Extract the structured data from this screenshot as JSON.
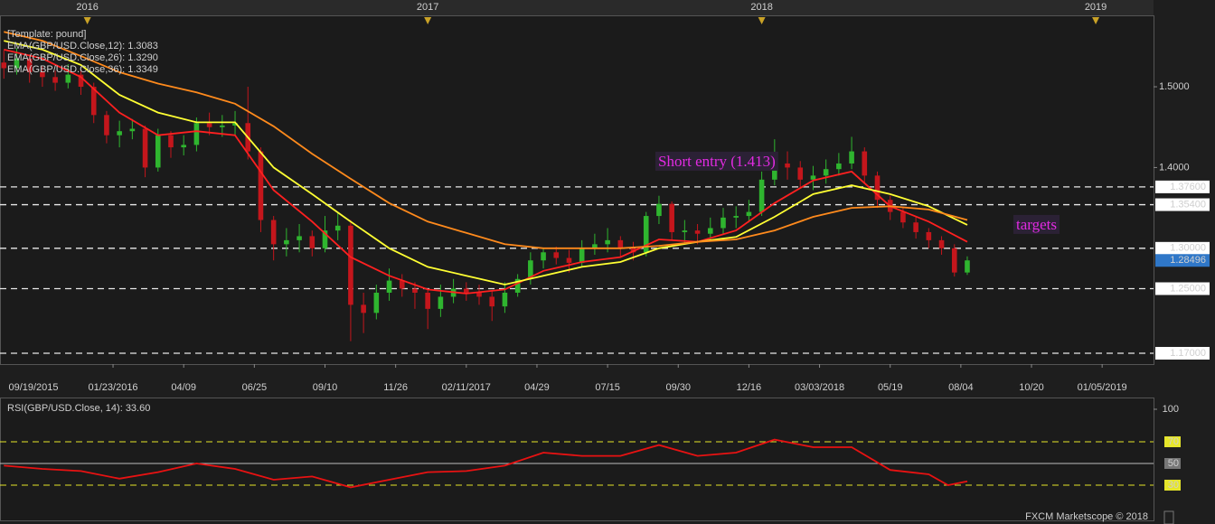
{
  "chart_data": [
    {
      "type": "candlestick",
      "template": "[Template: pound]",
      "x": [
        1,
        3,
        5,
        7,
        9,
        11,
        13,
        15,
        17,
        19,
        21,
        23,
        25,
        27,
        29,
        31,
        33,
        35,
        37,
        39,
        41,
        43,
        45,
        47,
        49,
        51,
        53,
        55,
        57,
        59,
        61,
        63,
        65,
        67,
        69,
        71,
        73,
        75,
        77,
        79,
        81,
        83,
        85,
        87,
        89,
        91,
        93,
        95,
        97,
        99,
        101,
        103,
        105,
        107,
        109,
        111,
        113,
        115,
        117,
        119,
        121,
        123,
        125,
        127,
        129,
        131,
        133,
        135,
        137,
        139,
        141,
        143,
        145,
        147,
        149,
        151
      ],
      "open": [
        1.53,
        1.523,
        1.535,
        1.518,
        1.512,
        1.505,
        1.515,
        1.5,
        1.465,
        1.44,
        1.445,
        1.448,
        1.4,
        1.44,
        1.425,
        1.428,
        1.455,
        1.45,
        1.452,
        1.455,
        1.42,
        1.335,
        1.305,
        1.31,
        1.315,
        1.3,
        1.322,
        1.328,
        1.23,
        1.22,
        1.245,
        1.26,
        1.25,
        1.245,
        1.225,
        1.24,
        1.25,
        1.245,
        1.24,
        1.228,
        1.245,
        1.262,
        1.285,
        1.295,
        1.288,
        1.282,
        1.3,
        1.305,
        1.31,
        1.3,
        1.295,
        1.34,
        1.355,
        1.32,
        1.322,
        1.318,
        1.325,
        1.338,
        1.34,
        1.345,
        1.385,
        1.405,
        1.4,
        1.385,
        1.39,
        1.398,
        1.405,
        1.42,
        1.39,
        1.36,
        1.345,
        1.332,
        1.32,
        1.31,
        1.3,
        1.27
      ],
      "high": [
        1.545,
        1.548,
        1.54,
        1.525,
        1.52,
        1.528,
        1.522,
        1.505,
        1.47,
        1.458,
        1.46,
        1.452,
        1.448,
        1.445,
        1.44,
        1.462,
        1.468,
        1.465,
        1.47,
        1.5,
        1.425,
        1.34,
        1.325,
        1.33,
        1.322,
        1.34,
        1.345,
        1.335,
        1.245,
        1.255,
        1.275,
        1.268,
        1.258,
        1.25,
        1.255,
        1.262,
        1.258,
        1.255,
        1.248,
        1.258,
        1.268,
        1.295,
        1.3,
        1.302,
        1.298,
        1.31,
        1.318,
        1.325,
        1.315,
        1.308,
        1.345,
        1.365,
        1.358,
        1.335,
        1.33,
        1.338,
        1.35,
        1.352,
        1.36,
        1.395,
        1.435,
        1.42,
        1.408,
        1.402,
        1.41,
        1.418,
        1.438,
        1.425,
        1.395,
        1.365,
        1.35,
        1.34,
        1.325,
        1.315,
        1.305,
        1.29
      ],
      "low": [
        1.51,
        1.515,
        1.505,
        1.5,
        1.495,
        1.498,
        1.49,
        1.455,
        1.43,
        1.425,
        1.435,
        1.388,
        1.395,
        1.412,
        1.415,
        1.42,
        1.44,
        1.438,
        1.44,
        1.41,
        1.32,
        1.285,
        1.29,
        1.295,
        1.29,
        1.295,
        1.31,
        1.185,
        1.195,
        1.212,
        1.235,
        1.24,
        1.225,
        1.2,
        1.215,
        1.232,
        1.235,
        1.23,
        1.21,
        1.22,
        1.24,
        1.255,
        1.275,
        1.28,
        1.27,
        1.278,
        1.292,
        1.295,
        1.29,
        1.285,
        1.29,
        1.33,
        1.31,
        1.305,
        1.305,
        1.31,
        1.318,
        1.325,
        1.332,
        1.34,
        1.378,
        1.385,
        1.375,
        1.372,
        1.38,
        1.39,
        1.398,
        1.38,
        1.35,
        1.335,
        1.325,
        1.312,
        1.3,
        1.292,
        1.265,
        1.267
      ],
      "close": [
        1.523,
        1.535,
        1.518,
        1.512,
        1.505,
        1.515,
        1.5,
        1.465,
        1.44,
        1.445,
        1.448,
        1.4,
        1.44,
        1.425,
        1.428,
        1.455,
        1.45,
        1.452,
        1.455,
        1.42,
        1.335,
        1.305,
        1.31,
        1.315,
        1.3,
        1.322,
        1.328,
        1.23,
        1.22,
        1.245,
        1.26,
        1.25,
        1.245,
        1.225,
        1.24,
        1.25,
        1.245,
        1.24,
        1.228,
        1.245,
        1.262,
        1.285,
        1.295,
        1.288,
        1.282,
        1.3,
        1.305,
        1.31,
        1.3,
        1.295,
        1.34,
        1.355,
        1.32,
        1.322,
        1.318,
        1.325,
        1.338,
        1.34,
        1.345,
        1.385,
        1.405,
        1.4,
        1.385,
        1.39,
        1.398,
        1.405,
        1.42,
        1.39,
        1.36,
        1.345,
        1.332,
        1.32,
        1.31,
        1.3,
        1.27,
        1.285
      ],
      "up_color": "#2fb52f",
      "down_color": "#c4161c",
      "series": [
        {
          "name": "EMA(GBP/USD.Close,12): 1.3083",
          "color": "#ff2020",
          "x": [
            1,
            7,
            13,
            19,
            25,
            31,
            37,
            43,
            49,
            55,
            61,
            67,
            73,
            79,
            85,
            91,
            97,
            103,
            109,
            115,
            121,
            127,
            133,
            139,
            145,
            151
          ],
          "values": [
            1.546,
            1.535,
            1.512,
            1.468,
            1.44,
            1.445,
            1.44,
            1.372,
            1.333,
            1.289,
            1.266,
            1.249,
            1.244,
            1.249,
            1.272,
            1.283,
            1.289,
            1.311,
            1.308,
            1.322,
            1.356,
            1.384,
            1.395,
            1.352,
            1.333,
            1.308
          ]
        },
        {
          "name": "EMA(GBP/USD.Close,26): 1.3290",
          "color": "#ffff33",
          "x": [
            1,
            7,
            13,
            19,
            25,
            31,
            37,
            43,
            49,
            55,
            61,
            67,
            73,
            79,
            85,
            91,
            97,
            103,
            109,
            115,
            121,
            127,
            133,
            139,
            145,
            151
          ],
          "values": [
            1.557,
            1.546,
            1.527,
            1.49,
            1.468,
            1.456,
            1.456,
            1.4,
            1.367,
            1.333,
            1.3,
            1.277,
            1.266,
            1.255,
            1.266,
            1.277,
            1.283,
            1.3,
            1.308,
            1.314,
            1.339,
            1.367,
            1.378,
            1.367,
            1.352,
            1.329
          ]
        },
        {
          "name": "EMA(GBP/USD.Close,36): 1.3349",
          "color": "#ff8a1c",
          "x": [
            1,
            7,
            13,
            19,
            25,
            31,
            37,
            43,
            49,
            55,
            61,
            67,
            73,
            79,
            85,
            91,
            97,
            103,
            109,
            115,
            121,
            127,
            133,
            139,
            145,
            151
          ],
          "values": [
            1.568,
            1.557,
            1.538,
            1.518,
            1.504,
            1.493,
            1.479,
            1.451,
            1.417,
            1.386,
            1.356,
            1.333,
            1.319,
            1.305,
            1.3,
            1.3,
            1.3,
            1.303,
            1.308,
            1.311,
            1.322,
            1.339,
            1.35,
            1.352,
            1.348,
            1.335
          ]
        }
      ],
      "xlim": [
        0.4,
        180
      ],
      "xticks": [
        {
          "value": 0,
          "label": "09/19/2015"
        },
        {
          "value": 18,
          "label": "01/23/2016"
        },
        {
          "value": 29,
          "label": "04/09"
        },
        {
          "value": 40,
          "label": "06/25"
        },
        {
          "value": 51,
          "label": "09/10"
        },
        {
          "value": 62,
          "label": "11/26"
        },
        {
          "value": 73,
          "label": "02/11/2017"
        },
        {
          "value": 84,
          "label": "04/29"
        },
        {
          "value": 95,
          "label": "07/15"
        },
        {
          "value": 106,
          "label": "09/30"
        },
        {
          "value": 117,
          "label": "12/16"
        },
        {
          "value": 128,
          "label": "03/03/2018"
        },
        {
          "value": 139,
          "label": "05/19"
        },
        {
          "value": 150,
          "label": "08/04"
        },
        {
          "value": 161,
          "label": "10/20"
        },
        {
          "value": 172,
          "label": "01/05/2019"
        }
      ],
      "years": [
        {
          "value": 14,
          "label": "2016"
        },
        {
          "value": 67,
          "label": "2017"
        },
        {
          "value": 119,
          "label": "2018"
        },
        {
          "value": 171,
          "label": "2019"
        }
      ],
      "ylim": [
        1.1566,
        1.5873
      ],
      "yticks": [
        {
          "value": 1.5,
          "label": "1.5000"
        },
        {
          "value": 1.4,
          "label": "1.4000"
        }
      ],
      "levels": [
        {
          "value": 1.376,
          "label": "1.37600"
        },
        {
          "value": 1.354,
          "label": "1.35400"
        },
        {
          "value": 1.3,
          "label": "1.30000"
        },
        {
          "value": 1.25,
          "label": "1.25000"
        },
        {
          "value": 1.17,
          "label": "1.17000"
        }
      ],
      "last_price": {
        "value": 1.28496,
        "label": "1.28496"
      },
      "annotations": [
        "Short entry (1.413)",
        "targets"
      ]
    },
    {
      "type": "line",
      "title": "RSI(GBP/USD.Close, 14): 33.60",
      "color": "#e81212",
      "x": [
        1,
        7,
        13,
        19,
        25,
        31,
        37,
        43,
        49,
        55,
        61,
        67,
        73,
        79,
        85,
        91,
        97,
        103,
        109,
        115,
        121,
        127,
        133,
        139,
        145,
        148,
        151
      ],
      "values": [
        48,
        45,
        43,
        36,
        42,
        50,
        45,
        35,
        38,
        28,
        35,
        42,
        43,
        48,
        60,
        57,
        57,
        67,
        57,
        60,
        72,
        65,
        65,
        44,
        40,
        30,
        33.6
      ],
      "xlim": [
        0.4,
        180
      ],
      "ylim": [
        0,
        110
      ],
      "yticks": [
        100,
        70,
        50,
        30
      ],
      "band": [
        30,
        70
      ]
    }
  ],
  "footer": "FXCM Marketscope © 2018"
}
